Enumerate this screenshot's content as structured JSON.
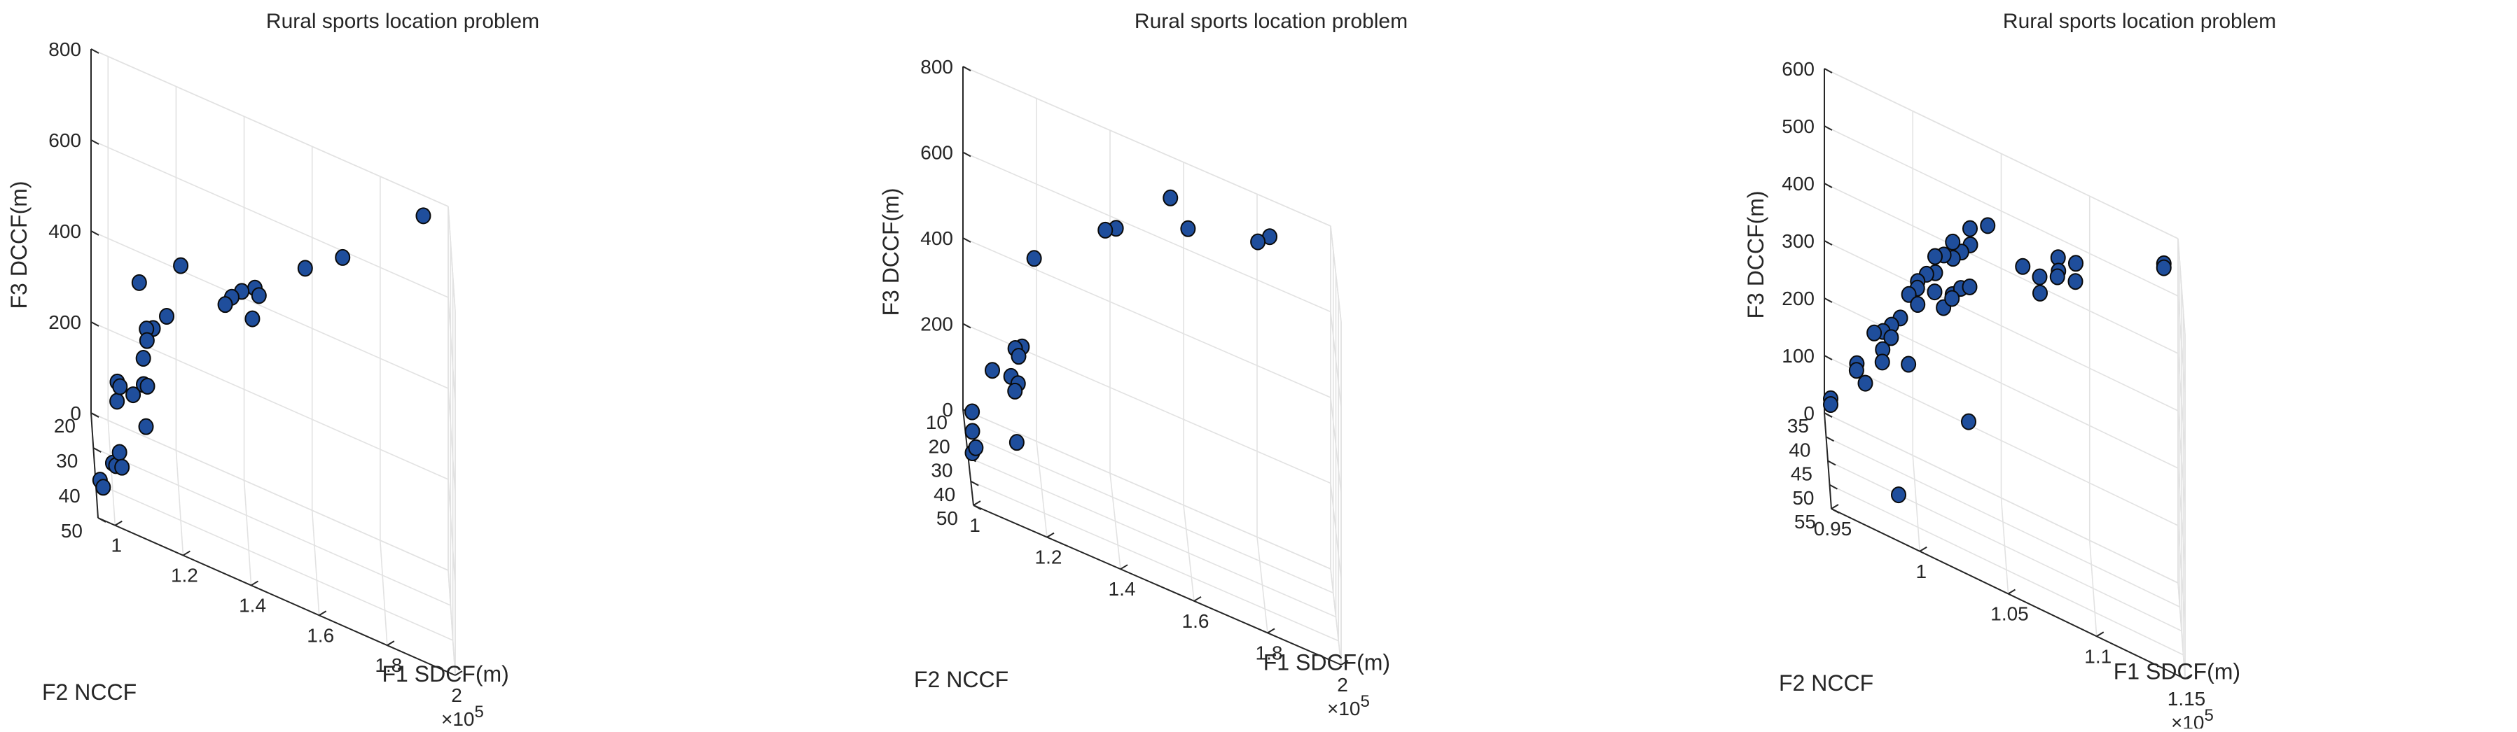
{
  "chart_data": [
    {
      "type": "scatter3d",
      "title": "Rural sports location problem",
      "xlabel": "F1  SDCF(m)",
      "ylabel": "F2  NCCF",
      "zlabel": "F3  DCCF(m)",
      "x_multiplier": "×10^5",
      "xlim": [
        0.95,
        2
      ],
      "ylim": [
        20,
        50
      ],
      "zlim": [
        0,
        800
      ],
      "xticks": [
        "1",
        "1.2",
        "1.4",
        "1.6",
        "1.8",
        "2"
      ],
      "yticks": [
        "20",
        "30",
        "40",
        "50"
      ],
      "zticks": [
        "0",
        "200",
        "400",
        "600",
        "800"
      ],
      "grid": true,
      "marker_color": "#1f4e9c",
      "points": [
        {
          "x": 1.92,
          "y": 30,
          "z": 830
        },
        {
          "x": 1.68,
          "y": 34,
          "z": 690
        },
        {
          "x": 1.57,
          "y": 34,
          "z": 630
        },
        {
          "x": 1.42,
          "y": 37,
          "z": 560
        },
        {
          "x": 1.43,
          "y": 40,
          "z": 570
        },
        {
          "x": 1.38,
          "y": 39,
          "z": 555
        },
        {
          "x": 1.35,
          "y": 40,
          "z": 540
        },
        {
          "x": 1.41,
          "y": 41,
          "z": 520
        },
        {
          "x": 1.33,
          "y": 41,
          "z": 525
        },
        {
          "x": 1.2,
          "y": 40,
          "z": 560
        },
        {
          "x": 1.16,
          "y": 38,
          "z": 420
        },
        {
          "x": 1.08,
          "y": 37,
          "z": 460
        },
        {
          "x": 1.12,
          "y": 38,
          "z": 380
        },
        {
          "x": 1.1,
          "y": 39,
          "z": 380
        },
        {
          "x": 1.1,
          "y": 41,
          "z": 370
        },
        {
          "x": 1.09,
          "y": 40,
          "z": 320
        },
        {
          "x": 1.01,
          "y": 44,
          "z": 230
        },
        {
          "x": 1.01,
          "y": 45,
          "z": 280
        },
        {
          "x": 1.02,
          "y": 42,
          "z": 250
        },
        {
          "x": 1.06,
          "y": 40,
          "z": 230
        },
        {
          "x": 1.09,
          "y": 41,
          "z": 270
        },
        {
          "x": 1.1,
          "y": 43,
          "z": 285
        },
        {
          "x": 1.0,
          "y": 40,
          "z": 60
        },
        {
          "x": 1.01,
          "y": 39,
          "z": 50
        },
        {
          "x": 1.02,
          "y": 40,
          "z": 90
        },
        {
          "x": 1.03,
          "y": 36,
          "z": 30
        },
        {
          "x": 1.1,
          "y": 37,
          "z": 150
        },
        {
          "x": 0.96,
          "y": 44,
          "z": 40
        },
        {
          "x": 0.97,
          "y": 43,
          "z": 20
        }
      ]
    },
    {
      "type": "scatter3d",
      "title": "Rural sports location problem",
      "xlabel": "F1  SDCF(m)",
      "ylabel": "F2  NCCF",
      "zlabel": "F3  DCCF(m)",
      "x_multiplier": "×10^5",
      "xlim": [
        1,
        2
      ],
      "ylim": [
        10,
        50
      ],
      "zlim": [
        0,
        800
      ],
      "xticks": [
        "1",
        "1.2",
        "1.4",
        "1.6",
        "1.8",
        "2"
      ],
      "yticks": [
        "10",
        "20",
        "30",
        "40",
        "50"
      ],
      "zticks": [
        "0",
        "200",
        "400",
        "600",
        "800"
      ],
      "grid": true,
      "marker_color": "#1f4e9c",
      "points": [
        {
          "x": 1.82,
          "y": 30,
          "z": 820
        },
        {
          "x": 1.79,
          "y": 27,
          "z": 780
        },
        {
          "x": 1.6,
          "y": 27,
          "z": 740
        },
        {
          "x": 1.55,
          "y": 30,
          "z": 810
        },
        {
          "x": 1.4,
          "y": 33,
          "z": 700
        },
        {
          "x": 1.37,
          "y": 34,
          "z": 690
        },
        {
          "x": 1.17,
          "y": 43,
          "z": 600
        },
        {
          "x": 1.14,
          "y": 39,
          "z": 360
        },
        {
          "x": 1.12,
          "y": 41,
          "z": 360
        },
        {
          "x": 1.13,
          "y": 40,
          "z": 340
        },
        {
          "x": 1.11,
          "y": 39,
          "z": 280
        },
        {
          "x": 1.13,
          "y": 38,
          "z": 265
        },
        {
          "x": 1.12,
          "y": 40,
          "z": 255
        },
        {
          "x": 1.06,
          "y": 38,
          "z": 270
        },
        {
          "x": 1.0,
          "y": 46,
          "z": 150
        },
        {
          "x": 1.0,
          "y": 45,
          "z": 190
        },
        {
          "x": 1.0,
          "y": 46,
          "z": 100
        },
        {
          "x": 1.01,
          "y": 45,
          "z": 110
        },
        {
          "x": 1.13,
          "y": 33,
          "z": 100
        }
      ]
    },
    {
      "type": "scatter3d",
      "title": "Rural sports location problem",
      "xlabel": "F1  SDCF(m)",
      "ylabel": "F2  NCCF",
      "zlabel": "F3  DCCF(m)",
      "x_multiplier": "×10^5",
      "xlim": [
        0.95,
        1.15
      ],
      "ylim": [
        35,
        55
      ],
      "zlim": [
        0,
        600
      ],
      "xticks": [
        "0.95",
        "1",
        "1.05",
        "1.1",
        "1.15"
      ],
      "yticks": [
        "35",
        "40",
        "45",
        "50",
        "55"
      ],
      "zticks": [
        "0",
        "100",
        "200",
        "300",
        "400",
        "500",
        "600"
      ],
      "grid": true,
      "marker_color": "#1f4e9c",
      "points": [
        {
          "x": 1.14,
          "y": 45,
          "z": 625
        },
        {
          "x": 1.14,
          "y": 45,
          "z": 618
        },
        {
          "x": 1.09,
          "y": 46,
          "z": 560
        },
        {
          "x": 1.08,
          "y": 46,
          "z": 555
        },
        {
          "x": 1.08,
          "y": 47,
          "z": 540
        },
        {
          "x": 1.09,
          "y": 45,
          "z": 520
        },
        {
          "x": 1.08,
          "y": 44,
          "z": 505
        },
        {
          "x": 1.07,
          "y": 44,
          "z": 490
        },
        {
          "x": 1.07,
          "y": 45,
          "z": 470
        },
        {
          "x": 1.06,
          "y": 46,
          "z": 510
        },
        {
          "x": 1.04,
          "y": 47,
          "z": 560
        },
        {
          "x": 1.03,
          "y": 48,
          "z": 520
        },
        {
          "x": 1.03,
          "y": 47,
          "z": 540
        },
        {
          "x": 1.025,
          "y": 48,
          "z": 500
        },
        {
          "x": 1.02,
          "y": 48,
          "z": 510
        },
        {
          "x": 1.02,
          "y": 49,
          "z": 490
        },
        {
          "x": 1.015,
          "y": 48,
          "z": 480
        },
        {
          "x": 1.01,
          "y": 48,
          "z": 470
        },
        {
          "x": 1.01,
          "y": 49,
          "z": 450
        },
        {
          "x": 1.005,
          "y": 49,
          "z": 440
        },
        {
          "x": 1.0,
          "y": 49,
          "z": 420
        },
        {
          "x": 1.0,
          "y": 48,
          "z": 400
        },
        {
          "x": 0.995,
          "y": 49,
          "z": 390
        },
        {
          "x": 1.0,
          "y": 49,
          "z": 380
        },
        {
          "x": 1.01,
          "y": 47,
          "z": 400
        },
        {
          "x": 1.015,
          "y": 47,
          "z": 380
        },
        {
          "x": 1.02,
          "y": 47,
          "z": 410
        },
        {
          "x": 1.025,
          "y": 46,
          "z": 420
        },
        {
          "x": 1.02,
          "y": 46,
          "z": 395
        },
        {
          "x": 1.03,
          "y": 46,
          "z": 430
        },
        {
          "x": 0.99,
          "y": 50,
          "z": 350
        },
        {
          "x": 0.985,
          "y": 50,
          "z": 330
        },
        {
          "x": 0.98,
          "y": 51,
          "z": 320
        },
        {
          "x": 0.985,
          "y": 49,
          "z": 300
        },
        {
          "x": 0.975,
          "y": 51,
          "z": 310
        },
        {
          "x": 0.98,
          "y": 50,
          "z": 280
        },
        {
          "x": 0.965,
          "y": 52,
          "z": 250
        },
        {
          "x": 0.965,
          "y": 51,
          "z": 230
        },
        {
          "x": 0.97,
          "y": 51,
          "z": 215
        },
        {
          "x": 0.95,
          "y": 53,
          "z": 175
        },
        {
          "x": 0.95,
          "y": 53,
          "z": 165
        },
        {
          "x": 0.98,
          "y": 49,
          "z": 250
        },
        {
          "x": 0.995,
          "y": 48,
          "z": 260
        },
        {
          "x": 1.03,
          "y": 43,
          "z": 170
        },
        {
          "x": 0.99,
          "y": 45,
          "z": 0
        }
      ]
    }
  ]
}
